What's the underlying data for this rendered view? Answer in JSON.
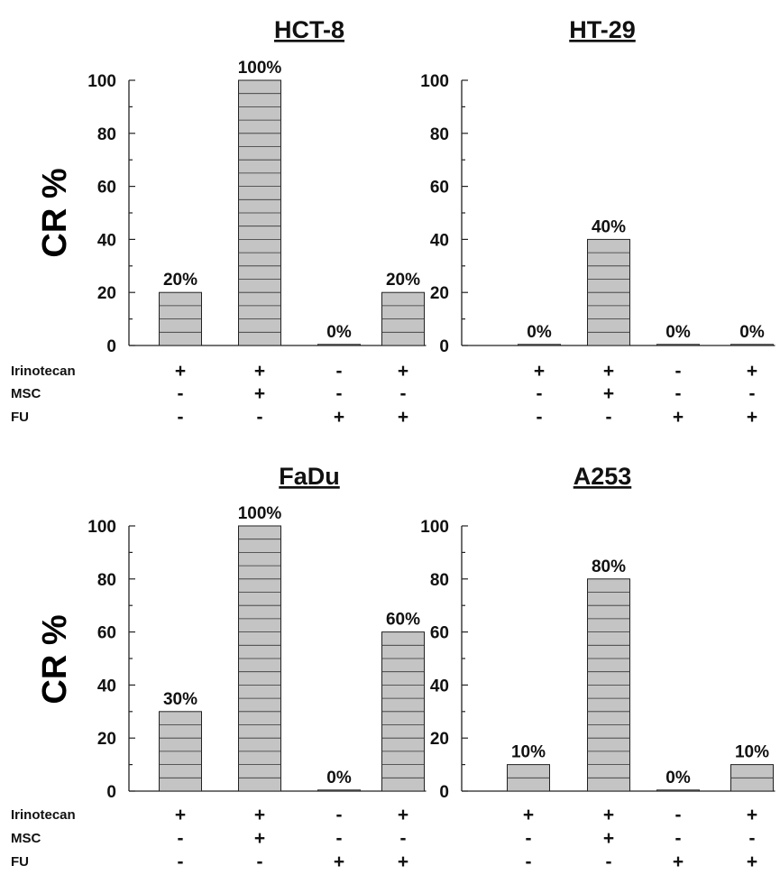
{
  "y_axis_label": "CR %",
  "row_labels": [
    "Irinotecan",
    "MSC",
    "FU"
  ],
  "colors": {
    "bar_fill": "#c4c4c4",
    "bar_stroke": "#222222",
    "text": "#111111"
  },
  "chart_data": [
    {
      "type": "bar",
      "title": "HCT-8",
      "ylim": [
        0,
        100
      ],
      "yticks": [
        0,
        20,
        40,
        60,
        80,
        100
      ],
      "categories": [
        "+/-/-",
        "+/+/-",
        "-/-/+",
        "+/-/+"
      ],
      "values": [
        20,
        100,
        0,
        20
      ],
      "value_labels": [
        "20%",
        "100%",
        "0%",
        "20%"
      ],
      "treatments": {
        "Irinotecan": [
          "+",
          "+",
          "-",
          "+"
        ],
        "MSC": [
          "-",
          "+",
          "-",
          "-"
        ],
        "FU": [
          "-",
          "-",
          "+",
          "+"
        ]
      }
    },
    {
      "type": "bar",
      "title": "HT-29",
      "ylim": [
        0,
        100
      ],
      "yticks": [
        0,
        20,
        40,
        60,
        80,
        100
      ],
      "categories": [
        "+/-/-",
        "+/+/-",
        "-/-/+",
        "+/-/+"
      ],
      "values": [
        0,
        40,
        0,
        0
      ],
      "value_labels": [
        "0%",
        "40%",
        "0%",
        "0%"
      ],
      "treatments": {
        "Irinotecan": [
          "+",
          "+",
          "-",
          "+"
        ],
        "MSC": [
          "-",
          "+",
          "-",
          "-"
        ],
        "FU": [
          "-",
          "-",
          "+",
          "+"
        ]
      }
    },
    {
      "type": "bar",
      "title": "FaDu",
      "ylim": [
        0,
        100
      ],
      "yticks": [
        0,
        20,
        40,
        60,
        80,
        100
      ],
      "categories": [
        "+/-/-",
        "+/+/-",
        "-/-/+",
        "+/-/+"
      ],
      "values": [
        30,
        100,
        0,
        60
      ],
      "value_labels": [
        "30%",
        "100%",
        "0%",
        "60%"
      ],
      "treatments": {
        "Irinotecan": [
          "+",
          "+",
          "-",
          "+"
        ],
        "MSC": [
          "-",
          "+",
          "-",
          "-"
        ],
        "FU": [
          "-",
          "-",
          "+",
          "+"
        ]
      }
    },
    {
      "type": "bar",
      "title": "A253",
      "ylim": [
        0,
        100
      ],
      "yticks": [
        0,
        20,
        40,
        60,
        80,
        100
      ],
      "categories": [
        "+/-/-",
        "+/+/-",
        "-/-/+",
        "+/-/+"
      ],
      "values": [
        10,
        80,
        0,
        10
      ],
      "value_labels": [
        "10%",
        "80%",
        "0%",
        "10%"
      ],
      "treatments": {
        "Irinotecan": [
          "+",
          "+",
          "-",
          "+"
        ],
        "MSC": [
          "-",
          "+",
          "-",
          "-"
        ],
        "FU": [
          "-",
          "-",
          "+",
          "+"
        ]
      }
    }
  ]
}
